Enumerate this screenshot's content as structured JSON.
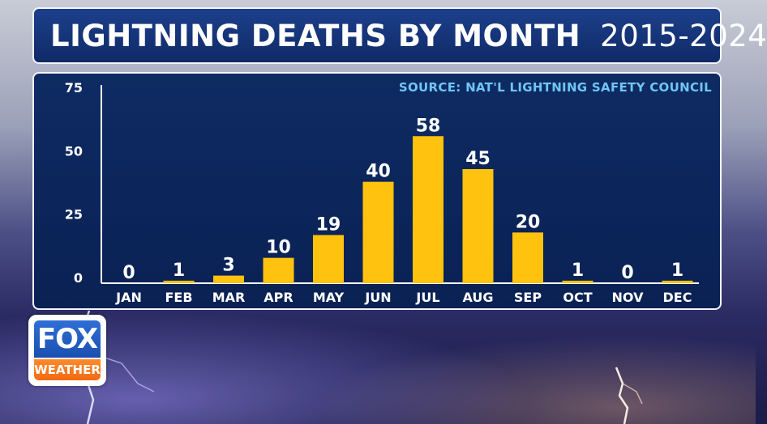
{
  "title": {
    "main": "LIGHTNING DEATHS BY MONTH",
    "years": "2015-2024"
  },
  "source": "SOURCE: NAT'L LIGHTNING SAFETY COUNCIL",
  "logo": {
    "top": "FOX",
    "bottom": "WEATHER"
  },
  "colors": {
    "bar": "#ffc20e",
    "panel": "#0e2b63",
    "accent": "#6fc6f2"
  },
  "chart_data": {
    "type": "bar",
    "title": "LIGHTNING DEATHS BY MONTH | 2015-2024",
    "categories": [
      "JAN",
      "FEB",
      "MAR",
      "APR",
      "MAY",
      "JUN",
      "JUL",
      "AUG",
      "SEP",
      "OCT",
      "NOV",
      "DEC"
    ],
    "values": [
      0,
      1,
      3,
      10,
      19,
      40,
      58,
      45,
      20,
      1,
      0,
      1
    ],
    "ylim": [
      0,
      75
    ],
    "yticks": [
      0,
      25,
      50,
      75
    ],
    "xlabel": "",
    "ylabel": "",
    "grid": false,
    "data_labels": true
  }
}
